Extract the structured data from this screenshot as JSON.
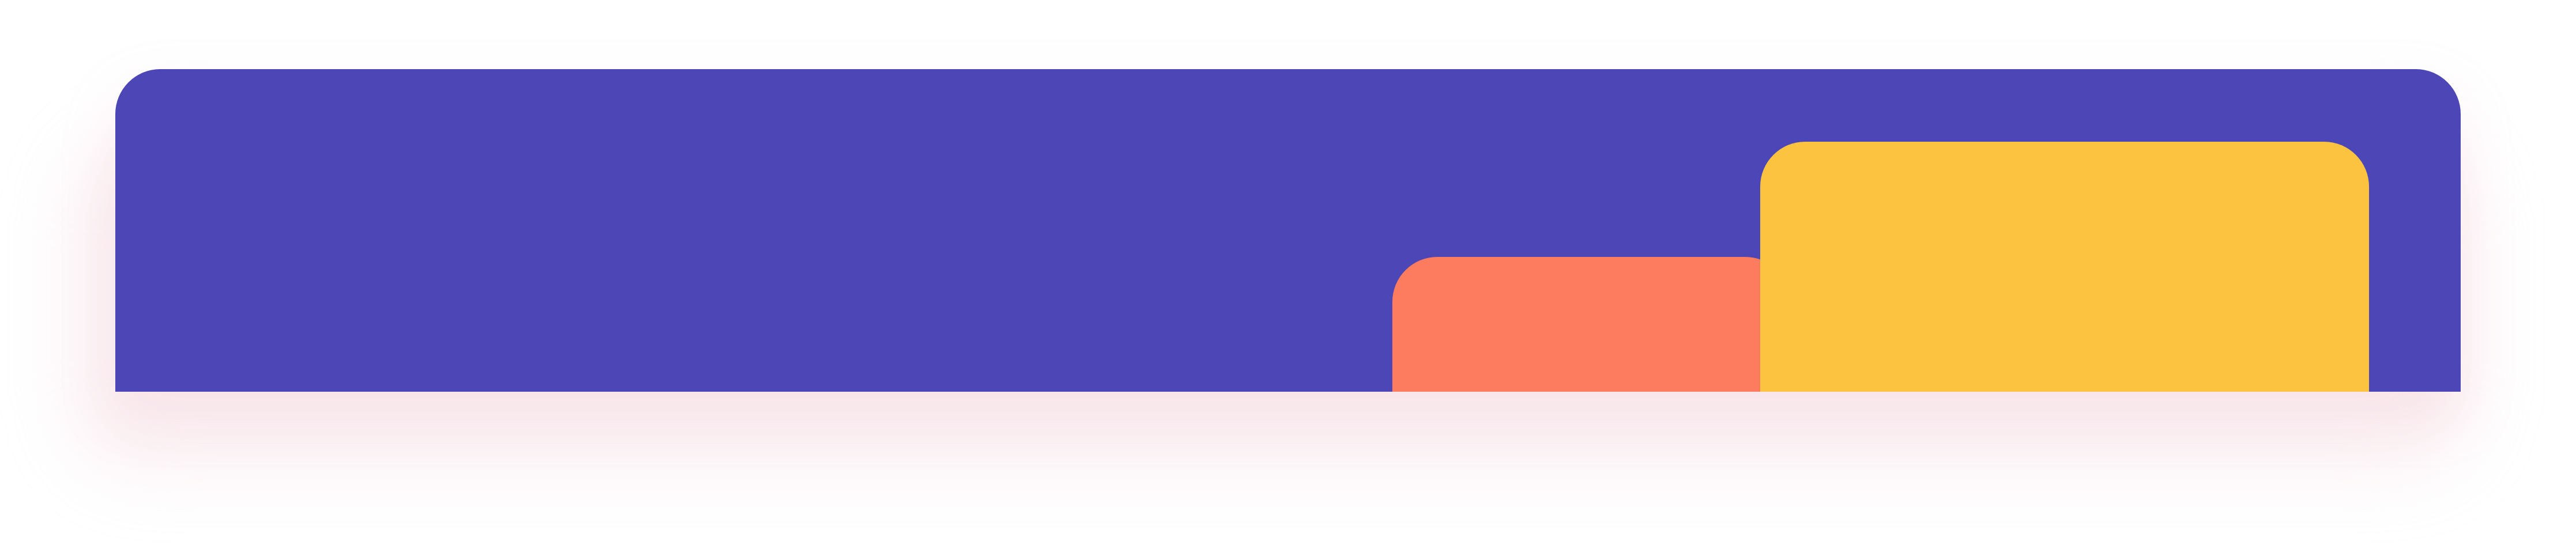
{
  "colors": {
    "panel": "#4c46b6",
    "orange_card": "#fd7c5f",
    "yellow_card": "#fbc33f",
    "background": "#ffffff"
  }
}
